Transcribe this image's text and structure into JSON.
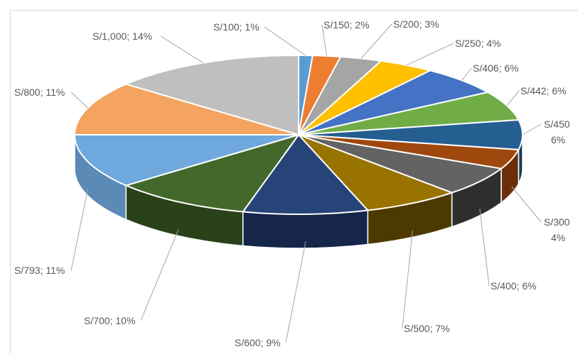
{
  "chart_data": {
    "type": "pie",
    "style": "3d-exploded",
    "slices": [
      {
        "label": "S/100",
        "percent": "1%",
        "value": 1,
        "color": "#5b9bd5",
        "side": "#3f6f9a"
      },
      {
        "label": "S/150",
        "percent": "2%",
        "value": 2,
        "color": "#ed7d31",
        "side": "#a85820"
      },
      {
        "label": "S/200",
        "percent": "3%",
        "value": 3,
        "color": "#a5a5a5",
        "side": "#6f6f6f"
      },
      {
        "label": "S/250",
        "percent": "4%",
        "value": 4,
        "color": "#ffc000",
        "side": "#b38600"
      },
      {
        "label": "S/406",
        "percent": "6%",
        "value": 6,
        "color": "#4472c4",
        "side": "#2d4f8a"
      },
      {
        "label": "S/442",
        "percent": "6%",
        "value": 6,
        "color": "#70ad47",
        "side": "#4b7a2e"
      },
      {
        "label": "S/450",
        "percent": "6%",
        "value": 6,
        "color": "#255e91",
        "side": "#163a5b"
      },
      {
        "label": "S/300",
        "percent": "4%",
        "value": 4,
        "color": "#9e480e",
        "side": "#6a2f08"
      },
      {
        "label": "S/400",
        "percent": "6%",
        "value": 6,
        "color": "#636363",
        "side": "#2e2e2e"
      },
      {
        "label": "S/500",
        "percent": "7%",
        "value": 7,
        "color": "#997300",
        "side": "#4d3a00"
      },
      {
        "label": "S/600",
        "percent": "9%",
        "value": 9,
        "color": "#264478",
        "side": "#15264a"
      },
      {
        "label": "S/700",
        "percent": "10%",
        "value": 10,
        "color": "#43682b",
        "side": "#2a4219"
      },
      {
        "label": "S/793",
        "percent": "11%",
        "value": 11,
        "color": "#6fa8dc",
        "side": "#5a8ab5"
      },
      {
        "label": "S/800",
        "percent": "11%",
        "value": 11,
        "color": "#f4a460",
        "side": "#b37340"
      },
      {
        "label": "S/1,000",
        "percent": "14%",
        "value": 14,
        "color": "#bfbfbf",
        "side": "#8c8c8c"
      }
    ]
  }
}
